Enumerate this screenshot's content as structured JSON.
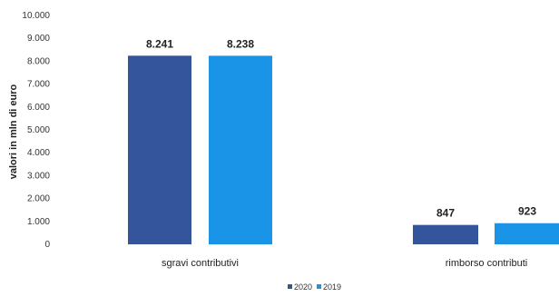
{
  "chart_data": {
    "type": "bar",
    "title": "",
    "xlabel": "",
    "ylabel": "valori in mln di euro",
    "ylim": [
      0,
      10000
    ],
    "yticks": [
      "10.000",
      "9.000",
      "8.000",
      "7.000",
      "6.000",
      "5.000",
      "4.000",
      "3.000",
      "2.000",
      "1.000",
      "0"
    ],
    "grid": false,
    "legend_position": "bottom",
    "categories": [
      "sgravi contributivi",
      "rimborso contributi"
    ],
    "series": [
      {
        "name": "2020",
        "values": [
          8241,
          847
        ],
        "labels": [
          "8.241",
          "847"
        ],
        "color": "#34549b"
      },
      {
        "name": "2019",
        "values": [
          8238,
          923
        ],
        "labels": [
          "8.238",
          "923"
        ],
        "color": "#1a94e6"
      }
    ]
  }
}
